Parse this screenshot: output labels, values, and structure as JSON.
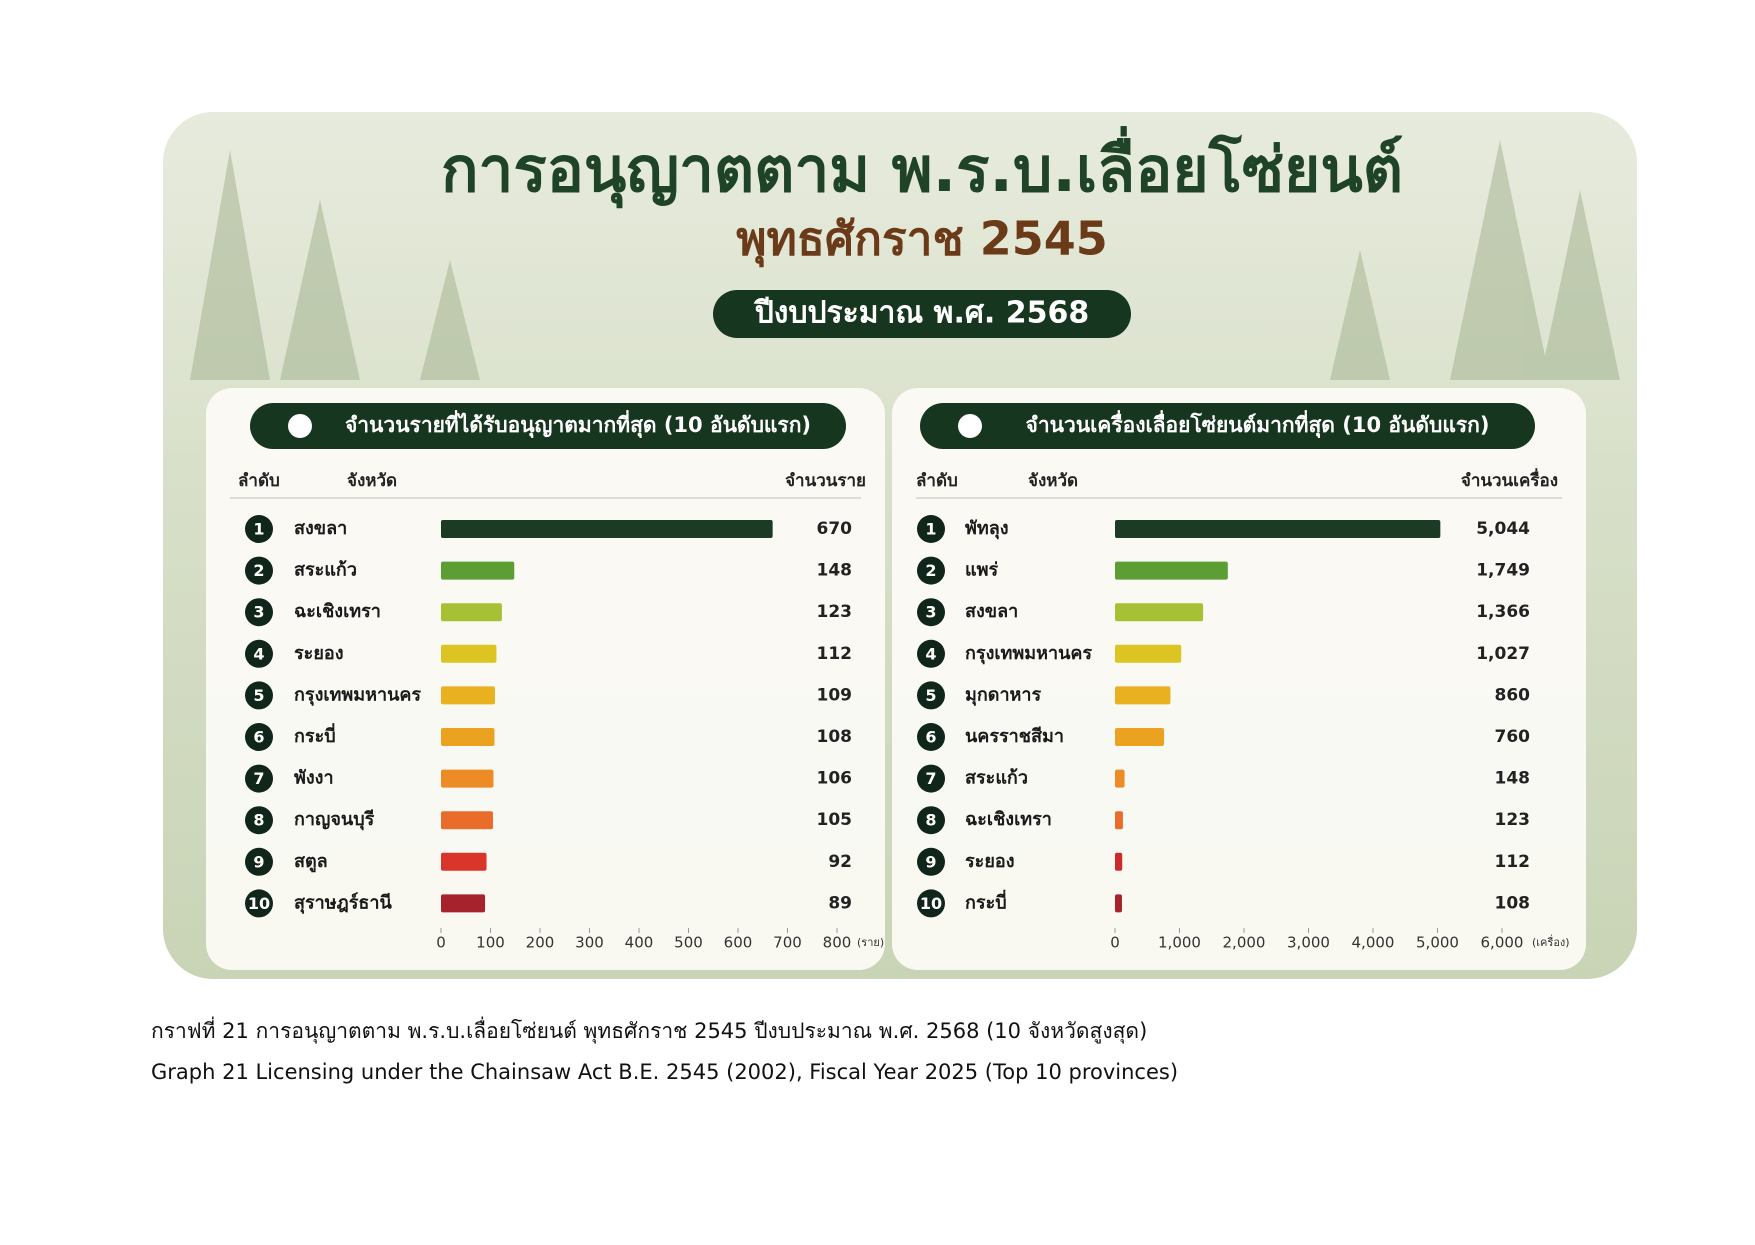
{
  "header": {
    "title": "การอนุญาตตาม พ.ร.บ.เลื่อยโซ่ยนต์",
    "subtitle": "พุทธศักราช 2545",
    "badge": "ปีงบประมาณ พ.ศ. 2568"
  },
  "chart_data": [
    {
      "type": "bar",
      "orientation": "horizontal",
      "title": "จำนวนรายที่ได้รับอนุญาตมากที่สุด (10 อันดับแรก)",
      "rank_header": "ลำดับ",
      "category_header": "จังหวัด",
      "value_header": "จำนวนราย",
      "ranks": [
        1,
        2,
        3,
        4,
        5,
        6,
        7,
        8,
        9,
        10
      ],
      "categories": [
        "สงขลา",
        "สระแก้ว",
        "ฉะเชิงเทรา",
        "ระยอง",
        "กรุงเทพมหานคร",
        "กระบี่",
        "พังงา",
        "กาญจนบุรี",
        "สตูล",
        "สุราษฎร์ธานี"
      ],
      "values": [
        670,
        148,
        123,
        112,
        109,
        108,
        106,
        105,
        92,
        89
      ],
      "colors": [
        "#1c3b25",
        "#5c9e34",
        "#a6c234",
        "#dcc422",
        "#e9b01f",
        "#eca221",
        "#ed8c25",
        "#ea6c2a",
        "#d9352b",
        "#a6222d"
      ],
      "xlim": [
        0,
        800
      ],
      "xticks": [
        0,
        100,
        200,
        300,
        400,
        500,
        600,
        700,
        800
      ],
      "x_unit": "(ราย)"
    },
    {
      "type": "bar",
      "orientation": "horizontal",
      "title": "จำนวนเครื่องเลื่อยโซ่ยนต์มากที่สุด (10 อันดับแรก)",
      "rank_header": "ลำดับ",
      "category_header": "จังหวัด",
      "value_header": "จำนวนเครื่อง",
      "ranks": [
        1,
        2,
        3,
        4,
        5,
        6,
        7,
        8,
        9,
        10
      ],
      "categories": [
        "พัทลุง",
        "แพร่",
        "สงขลา",
        "กรุงเทพมหานคร",
        "มุกดาหาร",
        "นครราชสีมา",
        "สระแก้ว",
        "ฉะเชิงเทรา",
        "ระยอง",
        "กระบี่"
      ],
      "values": [
        5044,
        1749,
        1366,
        1027,
        860,
        760,
        148,
        123,
        112,
        108
      ],
      "value_labels": [
        "5,044",
        "1,749",
        "1,366",
        "1,027",
        "860",
        "760",
        "148",
        "123",
        "112",
        "108"
      ],
      "colors": [
        "#1c3b25",
        "#5c9e34",
        "#a6c234",
        "#dcc422",
        "#e9b01f",
        "#eca221",
        "#ed8c25",
        "#ea6c2a",
        "#cc2b2d",
        "#a6222d"
      ],
      "xlim": [
        0,
        6000
      ],
      "xticks": [
        0,
        {
          "value": 1000,
          "label": "1,000"
        },
        {
          "value": 2000,
          "label": "2,000"
        },
        {
          "value": 3000,
          "label": "3,000"
        },
        {
          "value": 4000,
          "label": "4,000"
        },
        {
          "value": 5000,
          "label": "5,000"
        },
        {
          "value": 6000,
          "label": "6,000"
        }
      ],
      "x_unit": "(เครื่อง)"
    }
  ],
  "caption": [
    "กราฟที่ 21 การอนุญาตตาม พ.ร.บ.เลื่อยโซ่ยนต์ พุทธศักราช 2545 ปีงบประมาณ พ.ศ. 2568 (10 จังหวัดสูงสุด)",
    "Graph 21 Licensing under the Chainsaw Act B.E. 2545 (2002), Fiscal Year 2025 (Top 10 provinces)"
  ]
}
